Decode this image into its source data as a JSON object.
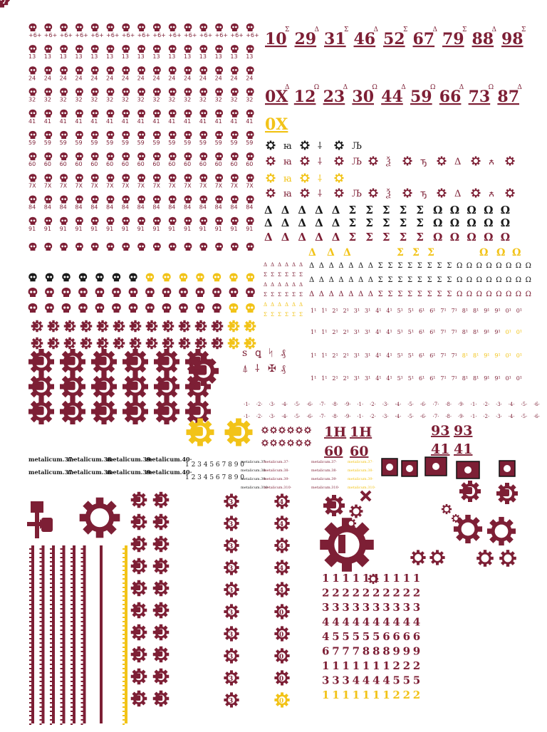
{
  "palette": {
    "maroon": "#7d1f35",
    "gold": "#f2c318",
    "black": "#1a1a1a"
  },
  "icons": [
    "skull-icon",
    "cog-skull-icon",
    "fist-icon",
    "hammer-arrow-icon",
    "cog-icon"
  ],
  "skull_rows": [
    "+6+",
    "13",
    "24",
    "32",
    "41",
    "59",
    "60",
    "7X",
    "84",
    "91"
  ],
  "big_numbers_row1": [
    "10",
    "29",
    "31",
    "46",
    "52",
    "67",
    "79",
    "88",
    "98"
  ],
  "big_numbers_row2": [
    "0X",
    "12",
    "23",
    "30",
    "44",
    "59",
    "66",
    "73",
    "87"
  ],
  "big_gold": "0X",
  "greek_row": [
    "Δ",
    "Δ",
    "Δ",
    "Δ",
    "Δ",
    "Σ",
    "Σ",
    "Σ",
    "Σ",
    "Σ",
    "Ω",
    "Ω",
    "Ω",
    "Ω",
    "Ω"
  ],
  "labels_metalicum": [
    "metalicum.37·",
    "metalicum.38·",
    "metalicum.39·",
    "metalicum.40·"
  ],
  "digits_line": "1 2 3 4 5 6 7 8 9 0",
  "pair_labels": [
    "1H",
    "1H",
    "60",
    "60",
    "93",
    "93",
    "41",
    "41"
  ],
  "cog_numbers": [
    "3",
    "4",
    "0"
  ],
  "number_grid_rows": [
    [
      "1",
      "1",
      "1",
      "1",
      "1",
      "1",
      "1",
      "1",
      "1",
      "1"
    ],
    [
      "2",
      "2",
      "2",
      "2",
      "2",
      "2",
      "2",
      "2",
      "2",
      "2"
    ],
    [
      "3",
      "3",
      "3",
      "3",
      "3",
      "3",
      "3",
      "3",
      "3",
      "3"
    ],
    [
      "4",
      "4",
      "4",
      "4",
      "4",
      "4",
      "4",
      "4",
      "4",
      "4"
    ],
    [
      "4",
      "5",
      "5",
      "5",
      "5",
      "5",
      "6",
      "6",
      "6",
      "6"
    ],
    [
      "6",
      "7",
      "7",
      "7",
      "8",
      "8",
      "8",
      "9",
      "9",
      "9"
    ],
    [
      "1",
      "1",
      "1",
      "1",
      "1",
      "1",
      "1",
      "2",
      "2",
      "2"
    ],
    [
      "3",
      "3",
      "3",
      "4",
      "4",
      "4",
      "4",
      "5",
      "5",
      "5"
    ],
    [
      "1",
      "1",
      "1",
      "1",
      "1",
      "1",
      "1",
      "2",
      "2",
      "2"
    ]
  ]
}
